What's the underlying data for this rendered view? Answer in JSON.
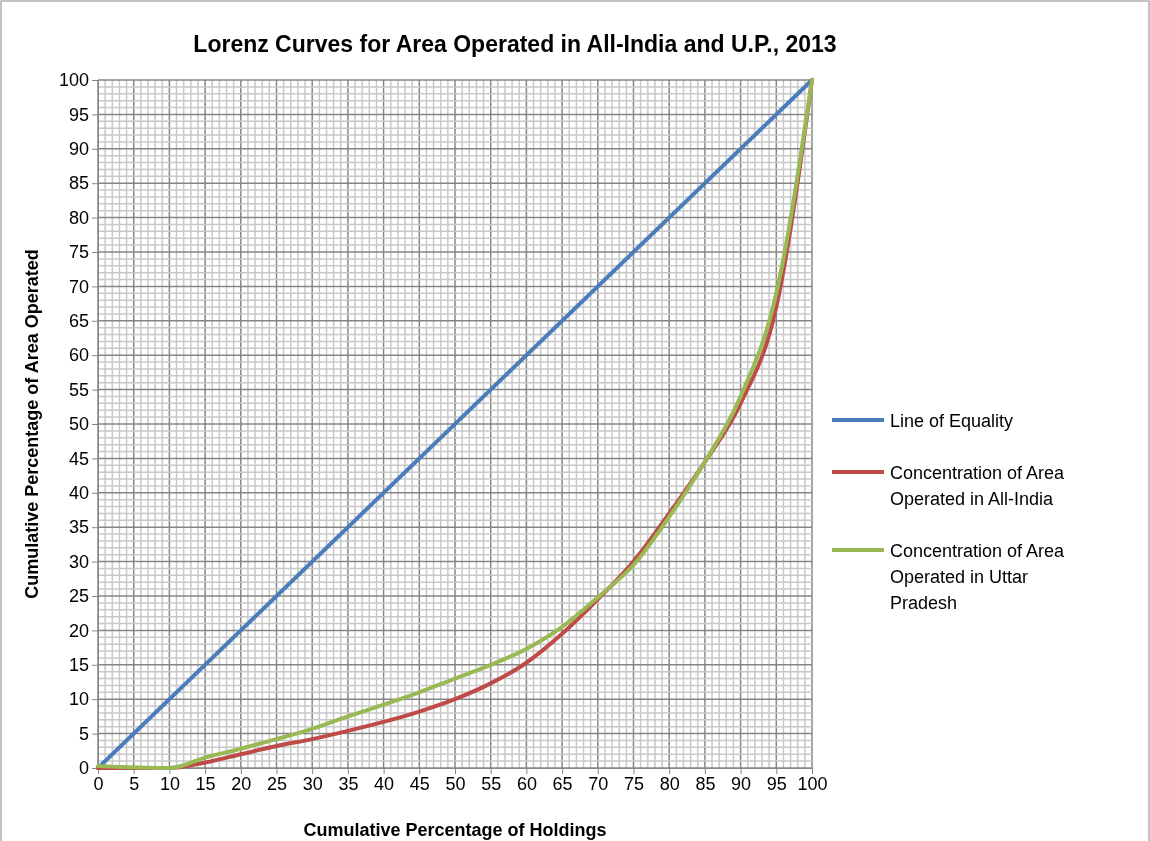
{
  "chart_data": {
    "type": "line",
    "title": "Lorenz Curves for Area Operated in All-India and U.P., 2013",
    "xlabel": "Cumulative Percentage of Holdings",
    "ylabel": "Cumulative Percentage of Area Operated",
    "xlim": [
      0,
      100
    ],
    "ylim": [
      0,
      100
    ],
    "xticks": [
      0,
      5,
      10,
      15,
      20,
      25,
      30,
      35,
      40,
      45,
      50,
      55,
      60,
      65,
      70,
      75,
      80,
      85,
      90,
      95,
      100
    ],
    "yticks": [
      0,
      5,
      10,
      15,
      20,
      25,
      30,
      35,
      40,
      45,
      50,
      55,
      60,
      65,
      70,
      75,
      80,
      85,
      90,
      95,
      100
    ],
    "grid": true,
    "legend": "right",
    "line_style": "solid",
    "marker": "none",
    "series": [
      {
        "name": "Line of Equality",
        "color": "#4a7ebb",
        "x": [
          0,
          100
        ],
        "values": [
          0,
          100
        ]
      },
      {
        "name": "Concentration of Area Operated in All-India",
        "color": "#be4b48",
        "x": [
          0,
          10,
          15,
          20,
          25,
          30,
          35,
          40,
          45,
          50,
          55,
          60,
          65,
          70,
          75,
          80,
          85,
          90,
          95,
          100
        ],
        "values": [
          0,
          0,
          0.8,
          2,
          3.2,
          4.2,
          5.4,
          6.7,
          8.2,
          10,
          12.3,
          15.3,
          19.5,
          24.5,
          30,
          37,
          44.5,
          53,
          67,
          100
        ]
      },
      {
        "name": "Concentration of Area Operated in Uttar Pradesh",
        "color": "#98b954",
        "x": [
          0,
          10,
          15,
          20,
          25,
          30,
          35,
          40,
          45,
          50,
          55,
          60,
          65,
          70,
          75,
          80,
          85,
          90,
          95,
          100
        ],
        "values": [
          0.3,
          0,
          1.5,
          2.8,
          4.2,
          5.7,
          7.5,
          9.2,
          11,
          13,
          15,
          17.3,
          20.5,
          24.8,
          29.5,
          36.5,
          44.5,
          54,
          69,
          100
        ]
      }
    ]
  }
}
